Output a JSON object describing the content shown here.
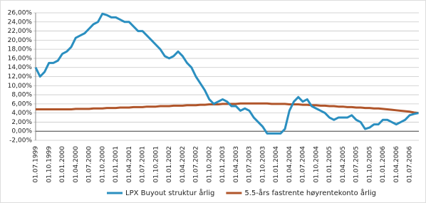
{
  "chart_data": {
    "type": "line",
    "categories": [
      "01.07.1999",
      null,
      null,
      "01.10.1999",
      null,
      null,
      "01.01.2000",
      null,
      null,
      "01.04.2000",
      null,
      null,
      "01.07.2000",
      null,
      null,
      "01.10.2000",
      null,
      null,
      "01.01.2001",
      null,
      null,
      "01.04.2001",
      null,
      null,
      "01.07.2001",
      null,
      null,
      "01.10.2001",
      null,
      null,
      "01.01.2002",
      null,
      null,
      "01.04.2002",
      null,
      null,
      "01.07.2002",
      null,
      null,
      "01.10.2002",
      null,
      null,
      "01.01.2003",
      null,
      null,
      "01.04.2003",
      null,
      null,
      "01.07.2003",
      null,
      null,
      "01.10.2003",
      null,
      null,
      "01.01.2004",
      null,
      null,
      "01.04.2004",
      null,
      null,
      "01.07.2004",
      null,
      null,
      "01.10.2004",
      null,
      null,
      "01.01.2005",
      null,
      null,
      "01.04.2005",
      null,
      null,
      "01.07.2005",
      null,
      null,
      "01.10.2005",
      null,
      null,
      "01.01.2006",
      null,
      null,
      "01.04.2006",
      null,
      null,
      "01.07.2006",
      null,
      null
    ],
    "series": [
      {
        "name": "LPX Buyout struktur årlig",
        "color": "#2b8fc0",
        "values": [
          14,
          12,
          13,
          15,
          15,
          15.5,
          17,
          17.5,
          18.5,
          20.5,
          21,
          21.5,
          22.5,
          23.5,
          24,
          25.8,
          25.5,
          25,
          25,
          24.5,
          24,
          24,
          23,
          22,
          22,
          21,
          20,
          19,
          18,
          16.5,
          16,
          16.5,
          17.5,
          16.5,
          15,
          14,
          12,
          10.5,
          9,
          7,
          6,
          6.5,
          7,
          6.5,
          5.5,
          5.5,
          4.5,
          5,
          4.5,
          3,
          2,
          1,
          -0.5,
          -0.5,
          -0.5,
          -0.5,
          0.5,
          4.5,
          6.5,
          7.5,
          6.5,
          7,
          5.5,
          5,
          4.5,
          4,
          3,
          2.5,
          3,
          3,
          3,
          3.5,
          2.5,
          2,
          0.5,
          0.8,
          1.5,
          1.5,
          2.5,
          2.5,
          2,
          1.5,
          2,
          2.5,
          3.5,
          3.8,
          4
        ]
      },
      {
        "name": "5.5-års fastrente høyrentekonto årlig",
        "color": "#b0552a",
        "values": [
          4.8,
          4.8,
          4.8,
          4.8,
          4.8,
          4.8,
          4.8,
          4.8,
          4.8,
          4.9,
          4.9,
          4.9,
          4.9,
          5.0,
          5.0,
          5.0,
          5.1,
          5.1,
          5.1,
          5.2,
          5.2,
          5.2,
          5.3,
          5.3,
          5.3,
          5.4,
          5.4,
          5.4,
          5.5,
          5.5,
          5.5,
          5.6,
          5.6,
          5.6,
          5.7,
          5.7,
          5.7,
          5.8,
          5.8,
          5.9,
          5.9,
          5.9,
          6.0,
          6.0,
          6.0,
          6.0,
          6.1,
          6.1,
          6.1,
          6.1,
          6.1,
          6.1,
          6.1,
          6.0,
          6.0,
          6.0,
          6.0,
          5.9,
          5.9,
          5.9,
          5.8,
          5.8,
          5.7,
          5.7,
          5.6,
          5.6,
          5.5,
          5.5,
          5.4,
          5.4,
          5.3,
          5.3,
          5.2,
          5.2,
          5.1,
          5.1,
          5.0,
          5.0,
          4.9,
          4.8,
          4.7,
          4.6,
          4.5,
          4.4,
          4.3,
          4.1,
          4.0
        ]
      }
    ],
    "ylim": [
      -2,
      26
    ],
    "yticks": [
      {
        "value": -2,
        "label": "-2,00%"
      },
      {
        "value": 0,
        "label": "0,00%"
      },
      {
        "value": 2,
        "label": "2,00%"
      },
      {
        "value": 4,
        "label": "4,00%"
      },
      {
        "value": 6,
        "label": "6,00%"
      },
      {
        "value": 8,
        "label": "8,00%"
      },
      {
        "value": 10,
        "label": "10,00%"
      },
      {
        "value": 12,
        "label": "12,00%"
      },
      {
        "value": 14,
        "label": "14,00%"
      },
      {
        "value": 16,
        "label": "16,00%"
      },
      {
        "value": 18,
        "label": "18,00%"
      },
      {
        "value": 20,
        "label": "20,00%"
      },
      {
        "value": 22,
        "label": "22,00%"
      },
      {
        "value": 24,
        "label": "24,00%"
      },
      {
        "value": 26,
        "label": "26,00%"
      }
    ],
    "grid": true,
    "legend": "bottom"
  }
}
